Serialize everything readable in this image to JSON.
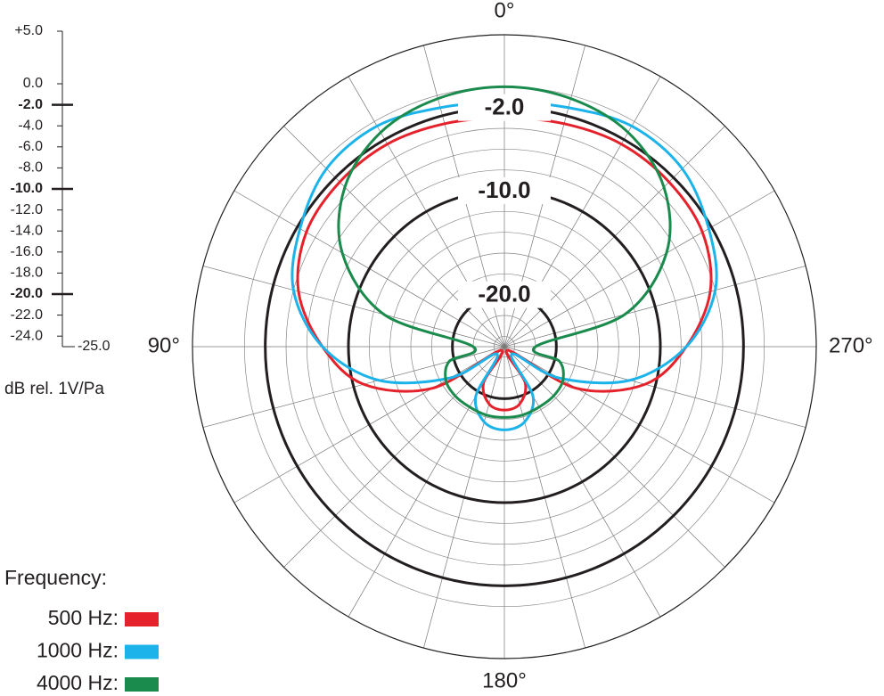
{
  "chart_data": {
    "type": "polar",
    "units_label": "dB rel. 1V/Pa",
    "legend_title": "Frequency:",
    "theta": [
      0,
      15,
      30,
      45,
      60,
      75,
      90,
      105,
      120,
      135,
      150,
      165,
      180,
      195,
      210,
      225,
      240,
      255,
      270,
      285,
      300,
      315,
      330,
      345
    ],
    "series": [
      {
        "name": "500 Hz:",
        "color": "#e5222b",
        "values": [
          -3.0,
          -2.8,
          -2.5,
          -2.6,
          -3.0,
          -4.5,
          -7.5,
          -11,
          -17,
          -24.5,
          -21,
          -19.3,
          -18.9,
          -19.3,
          -21,
          -24.5,
          -17,
          -11,
          -7.5,
          -4.5,
          -3.0,
          -2.6,
          -2.5,
          -2.8
        ]
      },
      {
        "name": "1000 Hz:",
        "color": "#1cb3ea",
        "values": [
          -1.5,
          -1.2,
          -0.5,
          -0.8,
          -2.3,
          -4,
          -7.5,
          -12.5,
          -19,
          -24,
          -19.5,
          -17.5,
          -17,
          -17.5,
          -19.5,
          -24,
          -19,
          -12.5,
          -7.5,
          -4,
          -2.3,
          -0.8,
          -0.5,
          -1.2
        ]
      },
      {
        "name": "4000 Hz:",
        "color": "#1a8b4c",
        "values": [
          0,
          -0.3,
          -1.2,
          -3.3,
          -7,
          -13,
          -22,
          -19.5,
          -18.5,
          -18.3,
          -18.3,
          -18.2,
          -18.2,
          -18.2,
          -18.3,
          -18.3,
          -18.5,
          -19.5,
          -22,
          -13,
          -7,
          -3.3,
          -1.2,
          -0.3
        ]
      }
    ],
    "ylim": [
      -25,
      5
    ],
    "yticks": [
      {
        "value": 5,
        "label": "+5.0"
      },
      {
        "value": 0,
        "label": "0.0"
      },
      {
        "value": -2,
        "label": "-2.0"
      },
      {
        "value": -4,
        "label": "-4.0"
      },
      {
        "value": -6,
        "label": "-6.0"
      },
      {
        "value": -8,
        "label": "-8.0"
      },
      {
        "value": -10,
        "label": "-10.0"
      },
      {
        "value": -12,
        "label": "-12.0"
      },
      {
        "value": -14,
        "label": "-14.0"
      },
      {
        "value": -16,
        "label": "-16.0"
      },
      {
        "value": -18,
        "label": "-18.0"
      },
      {
        "value": -20,
        "label": "-20.0"
      },
      {
        "value": -22,
        "label": "-22.0"
      },
      {
        "value": -24,
        "label": "-24.0"
      },
      {
        "value": -25,
        "label": "-25.0"
      }
    ],
    "highlight_ticks": [
      -2,
      -10,
      -20
    ],
    "xticks": [
      {
        "value": 0,
        "label": "0°"
      },
      {
        "value": 90,
        "label": "90°"
      },
      {
        "value": 180,
        "label": "180°"
      },
      {
        "value": 270,
        "label": "270°"
      }
    ],
    "grid": true
  }
}
